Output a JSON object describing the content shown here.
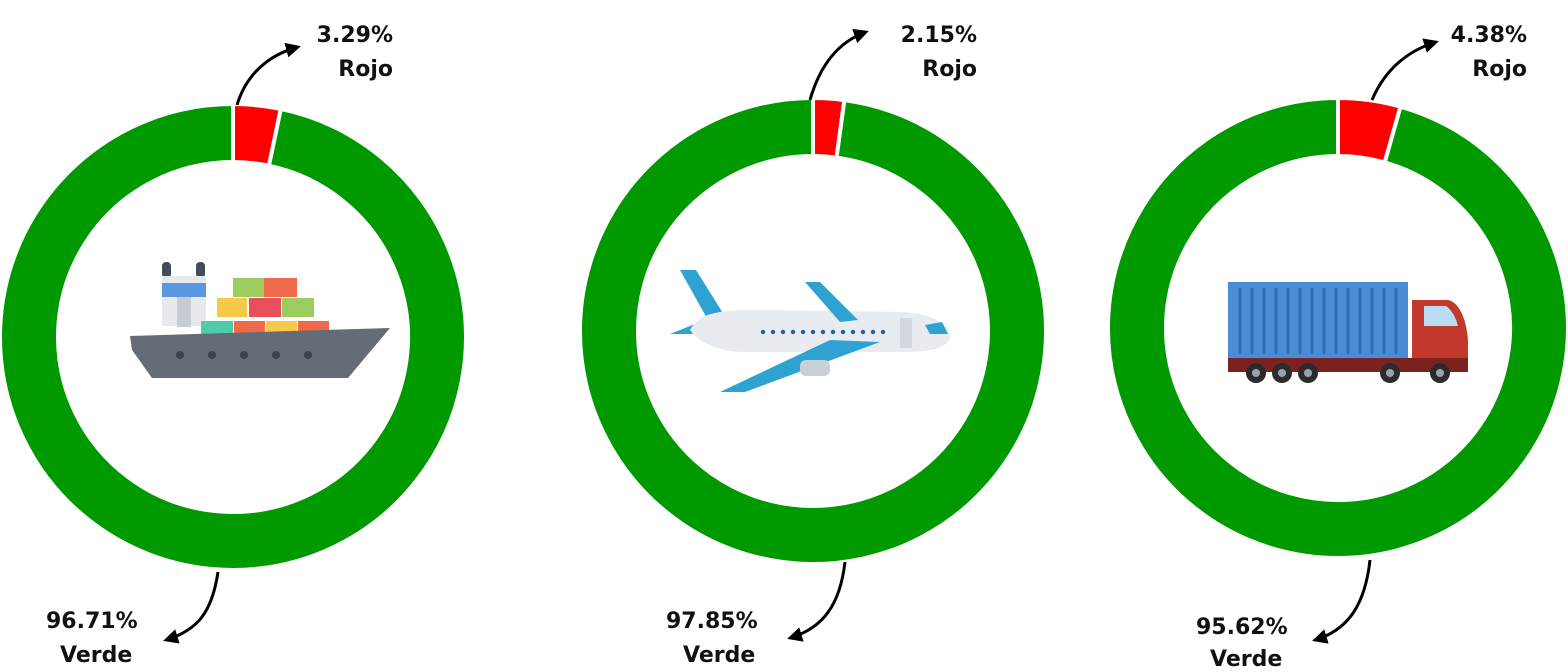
{
  "colors": {
    "verde": "#009900",
    "rojo": "#ff0000",
    "arrow": "#000000",
    "separator": "#ffffff"
  },
  "chart_data": [
    {
      "type": "pie",
      "style": "donut",
      "icon": "cargo-ship-icon",
      "slices": [
        {
          "name": "Rojo",
          "value": 3.29,
          "label": "3.29%",
          "color": "#ff0000"
        },
        {
          "name": "Verde",
          "value": 96.71,
          "label": "96.71%",
          "color": "#009900"
        }
      ]
    },
    {
      "type": "pie",
      "style": "donut",
      "icon": "airplane-icon",
      "slices": [
        {
          "name": "Rojo",
          "value": 2.15,
          "label": "2.15%",
          "color": "#ff0000"
        },
        {
          "name": "Verde",
          "value": 97.85,
          "label": "97.85%",
          "color": "#009900"
        }
      ]
    },
    {
      "type": "pie",
      "style": "donut",
      "icon": "container-truck-icon",
      "slices": [
        {
          "name": "Rojo",
          "value": 4.38,
          "label": "4.38%",
          "color": "#ff0000"
        },
        {
          "name": "Verde",
          "value": 95.62,
          "label": "95.62%",
          "color": "#009900"
        }
      ]
    }
  ]
}
